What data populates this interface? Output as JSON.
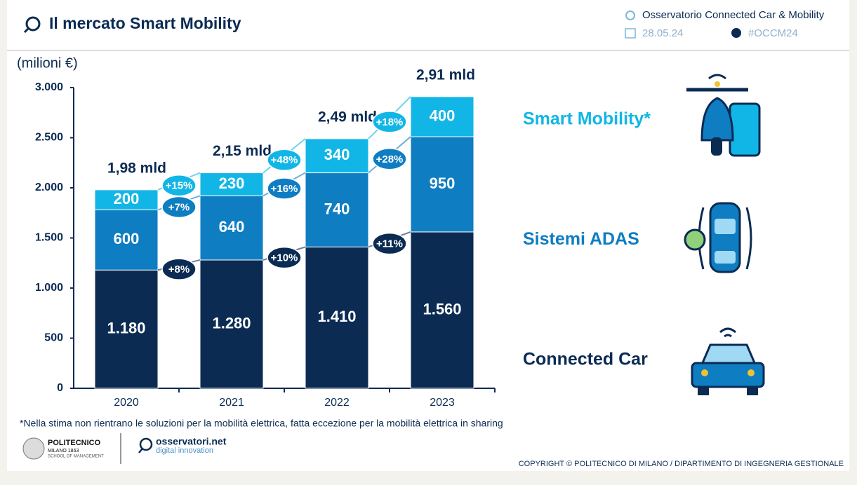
{
  "header": {
    "title": "Il mercato Smart Mobility",
    "source": "Osservatorio Connected Car & Mobility",
    "date": "28.05.24",
    "hashtag": "#OCCM24"
  },
  "chart_data": {
    "type": "stacked_bar",
    "y_label": "(milioni €)",
    "categories": [
      "2020",
      "2021",
      "2022",
      "2023"
    ],
    "series": [
      {
        "name": "Connected Car",
        "color": "#0b2b53",
        "values": [
          1180,
          1280,
          1410,
          1560
        ],
        "value_labels": [
          "1.180",
          "1.280",
          "1.410",
          "1.560"
        ],
        "growth_labels": [
          "+8%",
          "+10%",
          "+11%"
        ]
      },
      {
        "name": "Sistemi ADAS",
        "color": "#0f7dc2",
        "values": [
          600,
          640,
          740,
          950
        ],
        "value_labels": [
          "600",
          "640",
          "740",
          "950"
        ],
        "growth_labels": [
          "+7%",
          "+16%",
          "+28%"
        ]
      },
      {
        "name": "Smart Mobility*",
        "color": "#12b6e6",
        "values": [
          200,
          230,
          340,
          400
        ],
        "value_labels": [
          "200",
          "230",
          "340",
          "400"
        ],
        "growth_labels": [
          "+15%",
          "+48%",
          "+18%"
        ]
      }
    ],
    "total_labels": [
      "1,98 mld",
      "2,15 mld",
      "2,49 mld",
      "2,91 mld"
    ],
    "ylim": [
      0,
      3000
    ],
    "yticks": [
      0,
      500,
      {
        "value": 1000,
        "label": "1.000"
      },
      {
        "value": 1500,
        "label": "1.500"
      },
      {
        "value": 2000,
        "label": "2.000"
      },
      {
        "value": 2500,
        "label": "2.500"
      },
      {
        "value": 3000,
        "label": "3.000"
      }
    ],
    "footnote": "*Nella stima non rientrano le soluzioni per la mobilità elettrica, fatta eccezione per la mobilità elettrica in sharing"
  },
  "footer": {
    "logo1_name": "POLITECNICO",
    "logo1_sub": "MILANO 1863",
    "logo1_school": "SCHOOL OF MANAGEMENT",
    "logo2_name": "osservatori.net",
    "logo2_sub": "digital innovation",
    "copyright": "COPYRIGHT © POLITECNICO DI MILANO / DIPARTIMENTO DI INGEGNERIA GESTIONALE"
  }
}
